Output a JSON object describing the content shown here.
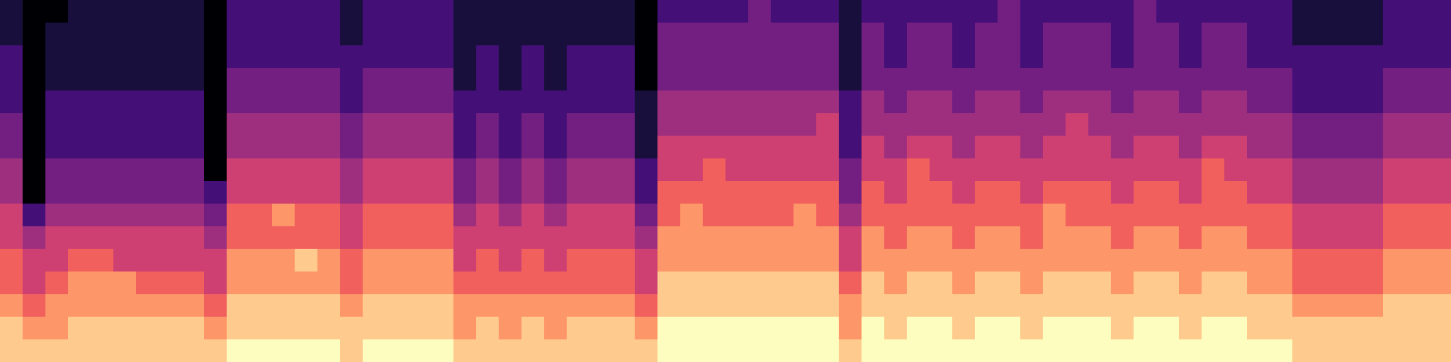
{
  "chart_data": {
    "type": "heatmap",
    "tick_labels": false,
    "xlim": [
      0,
      64
    ],
    "ylim": [
      0,
      16
    ],
    "zlim": [
      0,
      9
    ],
    "cells": [
      [
        1,
        0,
        0,
        1,
        1,
        1,
        1,
        1,
        1,
        0,
        2,
        2,
        2,
        2,
        2,
        1,
        2,
        2,
        2,
        2,
        1,
        1,
        1,
        1,
        1,
        1,
        1,
        1,
        0,
        2,
        2,
        2,
        2,
        3,
        2,
        2,
        2,
        1,
        2,
        2,
        2,
        2,
        2,
        2,
        3,
        2,
        2,
        2,
        2,
        2,
        3,
        2,
        2,
        2,
        2,
        2,
        2,
        1,
        1,
        1,
        1,
        2,
        2,
        2
      ],
      [
        1,
        0,
        1,
        1,
        1,
        1,
        1,
        1,
        1,
        0,
        2,
        2,
        2,
        2,
        2,
        1,
        2,
        2,
        2,
        2,
        1,
        1,
        1,
        1,
        1,
        1,
        1,
        1,
        0,
        3,
        3,
        3,
        3,
        3,
        3,
        3,
        3,
        1,
        3,
        2,
        3,
        3,
        2,
        3,
        3,
        2,
        3,
        3,
        3,
        2,
        3,
        3,
        2,
        3,
        3,
        2,
        2,
        1,
        1,
        1,
        1,
        2,
        2,
        2
      ],
      [
        2,
        0,
        1,
        1,
        1,
        1,
        1,
        1,
        1,
        0,
        2,
        2,
        2,
        2,
        2,
        2,
        2,
        2,
        2,
        2,
        1,
        2,
        1,
        2,
        1,
        2,
        2,
        2,
        0,
        3,
        3,
        3,
        3,
        3,
        3,
        3,
        3,
        1,
        3,
        2,
        3,
        3,
        2,
        3,
        3,
        2,
        3,
        3,
        3,
        2,
        3,
        3,
        2,
        3,
        3,
        2,
        2,
        2,
        2,
        2,
        2,
        2,
        2,
        2
      ],
      [
        2,
        0,
        1,
        1,
        1,
        1,
        1,
        1,
        1,
        0,
        3,
        3,
        3,
        3,
        3,
        2,
        3,
        3,
        3,
        3,
        1,
        2,
        1,
        2,
        1,
        2,
        2,
        2,
        0,
        3,
        3,
        3,
        3,
        3,
        3,
        3,
        3,
        1,
        3,
        3,
        3,
        3,
        3,
        3,
        3,
        3,
        3,
        3,
        3,
        3,
        3,
        3,
        3,
        3,
        3,
        3,
        3,
        2,
        2,
        2,
        2,
        3,
        3,
        3
      ],
      [
        2,
        0,
        2,
        2,
        2,
        2,
        2,
        2,
        2,
        0,
        3,
        3,
        3,
        3,
        3,
        2,
        3,
        3,
        3,
        3,
        2,
        2,
        2,
        2,
        2,
        2,
        2,
        2,
        1,
        4,
        4,
        4,
        4,
        4,
        4,
        4,
        4,
        2,
        4,
        3,
        4,
        4,
        3,
        4,
        4,
        3,
        4,
        4,
        4,
        3,
        4,
        4,
        3,
        4,
        4,
        3,
        3,
        2,
        2,
        2,
        2,
        3,
        3,
        3
      ],
      [
        3,
        0,
        2,
        2,
        2,
        2,
        2,
        2,
        2,
        0,
        4,
        4,
        4,
        4,
        4,
        3,
        4,
        4,
        4,
        4,
        2,
        3,
        2,
        3,
        2,
        3,
        3,
        3,
        1,
        4,
        4,
        4,
        4,
        4,
        4,
        4,
        5,
        2,
        4,
        4,
        4,
        4,
        4,
        4,
        4,
        4,
        4,
        5,
        4,
        4,
        4,
        4,
        4,
        4,
        4,
        4,
        4,
        3,
        3,
        3,
        3,
        4,
        4,
        4
      ],
      [
        3,
        0,
        2,
        2,
        2,
        2,
        2,
        2,
        2,
        0,
        4,
        4,
        4,
        4,
        4,
        3,
        4,
        4,
        4,
        4,
        2,
        3,
        2,
        3,
        2,
        3,
        3,
        3,
        1,
        5,
        5,
        5,
        5,
        5,
        5,
        5,
        5,
        2,
        5,
        4,
        5,
        5,
        4,
        5,
        5,
        4,
        5,
        5,
        5,
        4,
        5,
        5,
        4,
        5,
        5,
        4,
        4,
        3,
        3,
        3,
        3,
        4,
        4,
        4
      ],
      [
        4,
        0,
        3,
        3,
        3,
        3,
        3,
        3,
        3,
        0,
        5,
        5,
        5,
        5,
        5,
        4,
        5,
        5,
        5,
        5,
        3,
        4,
        3,
        4,
        3,
        4,
        4,
        4,
        2,
        5,
        5,
        6,
        5,
        5,
        5,
        5,
        5,
        3,
        5,
        5,
        6,
        5,
        5,
        5,
        5,
        5,
        5,
        5,
        5,
        5,
        5,
        5,
        5,
        6,
        5,
        5,
        5,
        4,
        4,
        4,
        4,
        5,
        5,
        5
      ],
      [
        4,
        0,
        3,
        3,
        3,
        3,
        3,
        3,
        3,
        2,
        5,
        5,
        5,
        5,
        5,
        4,
        5,
        5,
        5,
        5,
        3,
        4,
        3,
        4,
        3,
        4,
        4,
        4,
        2,
        6,
        6,
        6,
        6,
        6,
        6,
        6,
        6,
        3,
        6,
        5,
        6,
        6,
        5,
        6,
        6,
        5,
        6,
        6,
        6,
        5,
        6,
        6,
        5,
        6,
        6,
        5,
        5,
        4,
        4,
        4,
        4,
        5,
        5,
        5
      ],
      [
        5,
        2,
        4,
        4,
        4,
        4,
        4,
        4,
        4,
        3,
        6,
        6,
        7,
        6,
        6,
        5,
        6,
        6,
        6,
        6,
        4,
        5,
        4,
        5,
        4,
        5,
        5,
        5,
        3,
        6,
        7,
        6,
        6,
        6,
        6,
        7,
        6,
        4,
        6,
        6,
        6,
        6,
        6,
        6,
        6,
        6,
        7,
        6,
        6,
        6,
        6,
        6,
        6,
        6,
        6,
        6,
        6,
        5,
        5,
        5,
        5,
        6,
        6,
        6
      ],
      [
        5,
        4,
        5,
        5,
        5,
        5,
        5,
        5,
        5,
        4,
        6,
        6,
        6,
        6,
        6,
        5,
        6,
        6,
        6,
        6,
        5,
        5,
        5,
        5,
        5,
        5,
        5,
        5,
        4,
        7,
        7,
        7,
        7,
        7,
        7,
        7,
        7,
        5,
        7,
        6,
        7,
        7,
        6,
        7,
        7,
        6,
        7,
        7,
        7,
        6,
        7,
        7,
        6,
        7,
        7,
        6,
        6,
        5,
        5,
        5,
        5,
        6,
        6,
        6
      ],
      [
        6,
        5,
        5,
        6,
        6,
        5,
        5,
        5,
        5,
        5,
        7,
        7,
        7,
        8,
        7,
        6,
        7,
        7,
        7,
        7,
        5,
        6,
        5,
        6,
        5,
        6,
        6,
        6,
        5,
        7,
        7,
        7,
        7,
        7,
        7,
        7,
        7,
        5,
        7,
        7,
        7,
        7,
        7,
        7,
        7,
        7,
        7,
        7,
        7,
        7,
        7,
        7,
        7,
        7,
        7,
        7,
        7,
        6,
        6,
        6,
        6,
        7,
        7,
        7
      ],
      [
        6,
        5,
        6,
        7,
        7,
        7,
        6,
        6,
        6,
        5,
        7,
        7,
        7,
        7,
        7,
        6,
        7,
        7,
        7,
        7,
        6,
        6,
        6,
        6,
        6,
        6,
        6,
        6,
        5,
        8,
        8,
        8,
        8,
        8,
        8,
        8,
        8,
        6,
        8,
        7,
        8,
        8,
        7,
        8,
        8,
        7,
        8,
        8,
        8,
        7,
        8,
        8,
        7,
        8,
        8,
        7,
        7,
        6,
        6,
        6,
        6,
        7,
        7,
        7
      ],
      [
        7,
        6,
        7,
        7,
        7,
        7,
        7,
        7,
        7,
        6,
        8,
        8,
        8,
        8,
        8,
        7,
        8,
        8,
        8,
        8,
        7,
        7,
        7,
        7,
        7,
        7,
        7,
        7,
        6,
        8,
        8,
        8,
        8,
        8,
        8,
        8,
        8,
        7,
        8,
        8,
        8,
        8,
        8,
        8,
        8,
        8,
        8,
        8,
        8,
        8,
        8,
        8,
        8,
        8,
        8,
        8,
        8,
        7,
        7,
        7,
        7,
        8,
        8,
        8
      ],
      [
        8,
        7,
        7,
        8,
        8,
        8,
        8,
        8,
        8,
        7,
        8,
        8,
        8,
        8,
        8,
        8,
        8,
        8,
        8,
        8,
        7,
        8,
        7,
        8,
        7,
        8,
        8,
        8,
        7,
        9,
        9,
        9,
        9,
        9,
        9,
        9,
        9,
        7,
        9,
        8,
        9,
        9,
        8,
        9,
        9,
        8,
        9,
        9,
        9,
        8,
        9,
        9,
        8,
        9,
        9,
        8,
        8,
        8,
        8,
        8,
        8,
        8,
        8,
        8
      ],
      [
        8,
        8,
        8,
        8,
        8,
        8,
        8,
        8,
        8,
        8,
        9,
        9,
        9,
        9,
        9,
        8,
        9,
        9,
        9,
        9,
        8,
        8,
        8,
        8,
        8,
        8,
        8,
        8,
        8,
        9,
        9,
        9,
        9,
        9,
        9,
        9,
        9,
        8,
        9,
        9,
        9,
        9,
        9,
        9,
        9,
        9,
        9,
        9,
        9,
        9,
        9,
        9,
        9,
        9,
        9,
        9,
        9,
        8,
        8,
        8,
        8,
        8,
        8,
        8
      ]
    ]
  }
}
